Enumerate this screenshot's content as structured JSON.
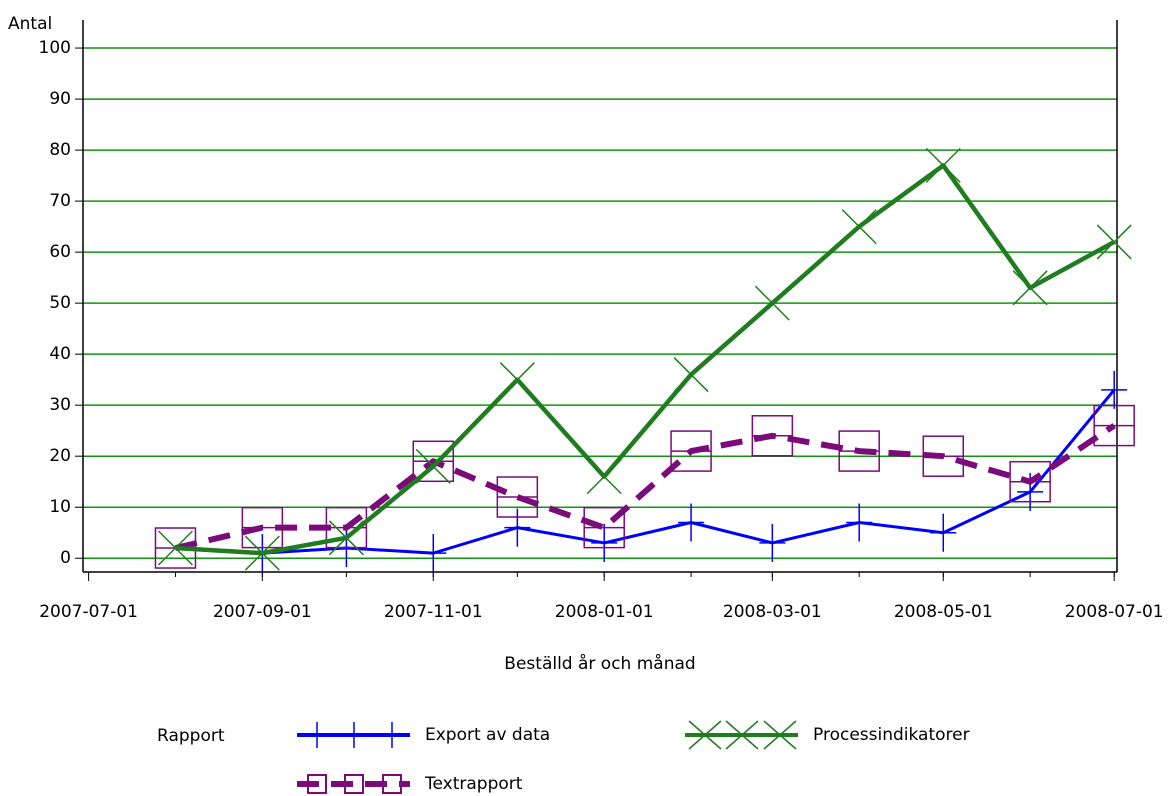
{
  "chart_data": {
    "type": "line",
    "y_label": "Antal",
    "x_label": "Beställd år och månad",
    "legend_title": "Rapport",
    "x": [
      "2007-08-01",
      "2007-09-01",
      "2007-10-01",
      "2007-11-01",
      "2007-12-01",
      "2008-01-01",
      "2008-02-01",
      "2008-03-01",
      "2008-04-01",
      "2008-05-01",
      "2008-06-01",
      "2008-07-01"
    ],
    "xlim": [
      "2007-06-29",
      "2008-07-02"
    ],
    "xticks": [
      "2007-07-01",
      "2007-09-01",
      "2007-11-01",
      "2008-01-01",
      "2008-03-01",
      "2008-05-01",
      "2008-07-01"
    ],
    "ylim": [
      -2.7,
      105.5
    ],
    "yticks": [
      0,
      10,
      20,
      30,
      40,
      50,
      60,
      70,
      80,
      90,
      100
    ],
    "grid": true,
    "grid_color": "#129412",
    "series": [
      {
        "name": "Export av data",
        "color": "#0000ff",
        "marker": "plus",
        "dash": false,
        "values": [
          null,
          1,
          2,
          1,
          6,
          3,
          7,
          3,
          7,
          5,
          13,
          33
        ]
      },
      {
        "name": "Processindikatorer",
        "color": "#1f7d1f",
        "marker": "x",
        "dash": false,
        "values": [
          2,
          1,
          4,
          18,
          35,
          16,
          36,
          50,
          65,
          77,
          53,
          62
        ]
      },
      {
        "name": "Textrapport",
        "color": "#7b0a7b",
        "marker": "square",
        "dash": true,
        "values": [
          2,
          6,
          6,
          19,
          12,
          6,
          21,
          24,
          21,
          20,
          15,
          26
        ]
      }
    ]
  }
}
